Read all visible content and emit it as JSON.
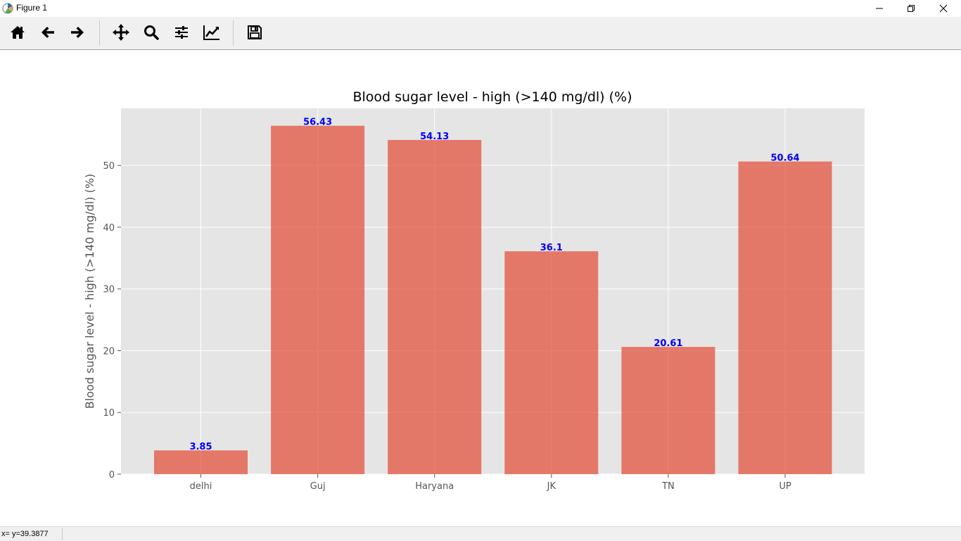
{
  "window": {
    "title": "Figure 1",
    "buttons": [
      "minimize-icon",
      "restore-icon",
      "close-icon"
    ]
  },
  "toolbar": {
    "buttons": [
      "home-icon",
      "back-arrow-icon",
      "forward-arrow-icon",
      "pan-icon",
      "zoom-icon",
      "configure-subplots-icon",
      "edit-axis-icon",
      "save-icon"
    ]
  },
  "status": {
    "coords": "x= y=39.3877"
  },
  "colors": {
    "bar": "#E24A33",
    "value_label": "#0000FF",
    "axes_bg": "#E5E5E5",
    "grid": "#FFFFFF"
  },
  "chart_data": {
    "type": "bar",
    "title": "Blood sugar level - high (>140 mg/dl) (%)",
    "xlabel": "",
    "ylabel": "Blood sugar level - high (>140 mg/dl) (%)",
    "categories": [
      "delhi",
      "Guj",
      "Haryana",
      "JK",
      "TN",
      "UP"
    ],
    "values": [
      3.85,
      56.43,
      54.13,
      36.1,
      20.61,
      50.64
    ],
    "value_labels": [
      "3.85",
      "56.43",
      "54.13",
      "36.1",
      "20.61",
      "50.64"
    ],
    "ylim": [
      0,
      59.25
    ],
    "yticks": [
      0,
      10,
      20,
      30,
      40,
      50
    ],
    "grid": true,
    "style": "ggplot"
  }
}
